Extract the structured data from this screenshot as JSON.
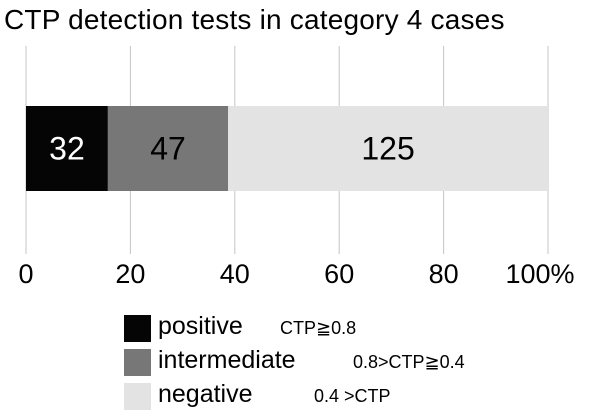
{
  "chart_data": {
    "type": "bar",
    "orientation": "horizontal",
    "stacked": true,
    "title": "CTP detection tests in category 4 cases",
    "xlim": [
      0,
      100
    ],
    "x_ticks": [
      "0",
      "20",
      "40",
      "60",
      "80",
      "100%"
    ],
    "grid": true,
    "legend_position": "bottom",
    "series": [
      {
        "name": "positive",
        "condition": "CTP≧0.8",
        "value": 32,
        "color": "#050505"
      },
      {
        "name": "intermediate",
        "condition": "0.8>CTP≧0.4",
        "value": 47,
        "color": "#777777"
      },
      {
        "name": "negative",
        "condition": "0.4 >CTP",
        "value": 125,
        "color": "#e3e3e3"
      }
    ]
  }
}
